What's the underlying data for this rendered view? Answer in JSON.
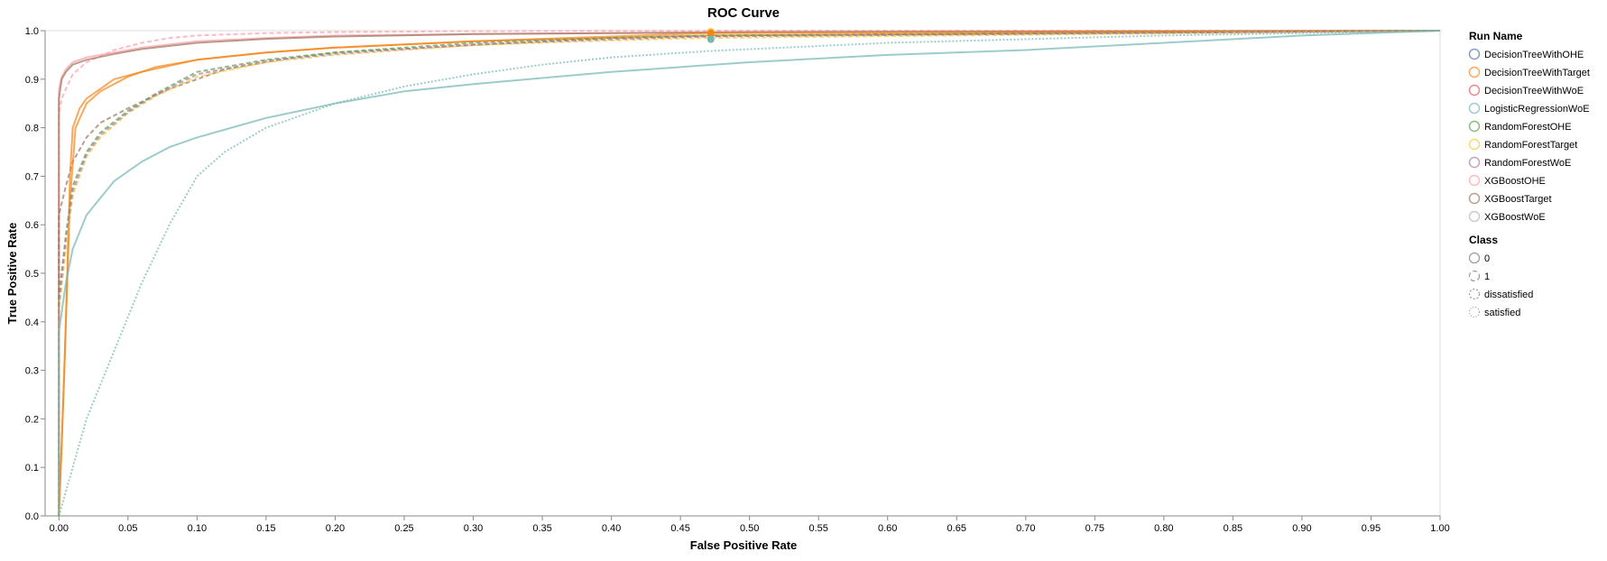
{
  "colors": {
    "DecisionTreeWithOHE": "#4c78a8",
    "DecisionTreeWithTarget": "#f58518",
    "DecisionTreeWithWoE": "#e45756",
    "LogisticRegressionWoE": "#72b7b2",
    "RandomForestOHE": "#54a24b",
    "RandomForestTarget": "#eeca3b",
    "RandomForestWoE": "#b279a2",
    "XGBoostOHE": "#ff9da6",
    "XGBoostTarget": "#9d755d",
    "XGBoostWoE": "#bab0ac",
    "axis": "#888888",
    "grid": "#dddddd"
  },
  "chart_data": {
    "type": "line",
    "title": "ROC Curve",
    "xlabel": "False Positive Rate",
    "ylabel": "True Positive Rate",
    "xlim": [
      -0.01,
      1.0
    ],
    "ylim": [
      0,
      1.0
    ],
    "grid": false,
    "legend_placement": "right",
    "xticks": [
      "0.00",
      "0.05",
      "0.10",
      "0.15",
      "0.20",
      "0.25",
      "0.30",
      "0.35",
      "0.40",
      "0.45",
      "0.50",
      "0.55",
      "0.60",
      "0.65",
      "0.70",
      "0.75",
      "0.80",
      "0.85",
      "0.90",
      "0.95",
      "1.00"
    ],
    "xtick_values": [
      0,
      0.05,
      0.1,
      0.15,
      0.2,
      0.25,
      0.3,
      0.35,
      0.4,
      0.45,
      0.5,
      0.55,
      0.6,
      0.65,
      0.7,
      0.75,
      0.8,
      0.85,
      0.9,
      0.95,
      1.0
    ],
    "yticks": [
      "0.0",
      "0.1",
      "0.2",
      "0.3",
      "0.4",
      "0.5",
      "0.6",
      "0.7",
      "0.8",
      "0.9",
      "1.0"
    ],
    "ytick_values": [
      0,
      0.1,
      0.2,
      0.3,
      0.4,
      0.5,
      0.6,
      0.7,
      0.8,
      0.9,
      1.0
    ],
    "legend_run": {
      "title": "Run Name",
      "items": [
        "DecisionTreeWithOHE",
        "DecisionTreeWithTarget",
        "DecisionTreeWithWoE",
        "LogisticRegressionWoE",
        "RandomForestOHE",
        "RandomForestTarget",
        "RandomForestWoE",
        "XGBoostOHE",
        "XGBoostTarget",
        "XGBoostWoE"
      ]
    },
    "legend_class": {
      "title": "Class",
      "items": [
        {
          "label": "0",
          "dash": "solid"
        },
        {
          "label": "1",
          "dash": "dashed"
        },
        {
          "label": "dissatisfied",
          "dash": "dotted"
        },
        {
          "label": "satisfied",
          "dash": "fine-dotted"
        }
      ]
    },
    "series": [
      {
        "run": "XGBoostOHE",
        "class": "0",
        "dash": "solid",
        "x": [
          0,
          0.0,
          0.002,
          0.005,
          0.01,
          0.02,
          0.04,
          0.06,
          0.1,
          0.15,
          0.2,
          0.3,
          0.4,
          0.5,
          0.7,
          1.0
        ],
        "y": [
          0,
          0.88,
          0.905,
          0.92,
          0.935,
          0.945,
          0.955,
          0.965,
          0.978,
          0.985,
          0.99,
          0.993,
          0.995,
          0.997,
          0.999,
          1.0
        ]
      },
      {
        "run": "XGBoostOHE",
        "class": "1",
        "dash": "dashed",
        "x": [
          0,
          0.0,
          0.002,
          0.005,
          0.01,
          0.02,
          0.04,
          0.06,
          0.08,
          0.1,
          0.15,
          0.2,
          0.3,
          0.5,
          1.0
        ],
        "y": [
          0,
          0.83,
          0.86,
          0.88,
          0.91,
          0.935,
          0.96,
          0.975,
          0.985,
          0.99,
          0.995,
          0.997,
          0.999,
          1.0,
          1.0
        ]
      },
      {
        "run": "XGBoostTarget",
        "class": "0",
        "dash": "solid",
        "x": [
          0,
          0.0,
          0.002,
          0.005,
          0.01,
          0.02,
          0.04,
          0.06,
          0.1,
          0.15,
          0.2,
          0.3,
          0.5,
          1.0
        ],
        "y": [
          0,
          0.86,
          0.9,
          0.915,
          0.93,
          0.94,
          0.952,
          0.962,
          0.975,
          0.983,
          0.988,
          0.993,
          0.997,
          1.0
        ]
      },
      {
        "run": "XGBoostTarget",
        "class": "1",
        "dash": "dashed",
        "x": [
          0,
          0.0,
          0.005,
          0.01,
          0.02,
          0.03,
          0.05,
          0.08,
          0.12,
          0.16,
          0.2,
          0.3,
          0.4,
          0.5,
          1.0
        ],
        "y": [
          0,
          0.62,
          0.68,
          0.73,
          0.78,
          0.81,
          0.84,
          0.88,
          0.92,
          0.94,
          0.955,
          0.97,
          0.985,
          0.99,
          1.0
        ]
      },
      {
        "run": "DecisionTreeWithTarget",
        "class": "0",
        "dash": "solid",
        "x": [
          0,
          0.002,
          0.004,
          0.006,
          0.008,
          0.01,
          0.015,
          0.02,
          0.03,
          0.04,
          0.06,
          0.1,
          0.15,
          0.2,
          0.3,
          0.47,
          1.0
        ],
        "y": [
          0,
          0.15,
          0.3,
          0.5,
          0.7,
          0.8,
          0.84,
          0.86,
          0.88,
          0.9,
          0.915,
          0.94,
          0.955,
          0.965,
          0.978,
          0.99,
          1.0
        ]
      },
      {
        "run": "DecisionTreeWithTarget",
        "class": "1",
        "dash": "solid",
        "x": [
          0,
          0.002,
          0.005,
          0.008,
          0.012,
          0.02,
          0.03,
          0.05,
          0.07,
          0.1,
          0.15,
          0.2,
          0.3,
          0.47,
          1.0
        ],
        "y": [
          0,
          0.15,
          0.4,
          0.65,
          0.8,
          0.85,
          0.875,
          0.905,
          0.925,
          0.94,
          0.955,
          0.965,
          0.978,
          0.995,
          1.0
        ]
      },
      {
        "run": "RandomForestOHE",
        "class": "1",
        "dash": "dashed",
        "x": [
          0,
          0.0,
          0.005,
          0.01,
          0.02,
          0.03,
          0.05,
          0.07,
          0.1,
          0.15,
          0.2,
          0.3,
          0.4,
          0.47,
          1.0
        ],
        "y": [
          0,
          0.45,
          0.58,
          0.68,
          0.75,
          0.79,
          0.835,
          0.87,
          0.915,
          0.94,
          0.955,
          0.975,
          0.985,
          0.99,
          1.0
        ]
      },
      {
        "run": "RandomForestTarget",
        "class": "1",
        "dash": "dashed",
        "x": [
          0,
          0.0,
          0.005,
          0.01,
          0.02,
          0.03,
          0.05,
          0.07,
          0.1,
          0.15,
          0.2,
          0.3,
          0.4,
          0.47,
          1.0
        ],
        "y": [
          0,
          0.42,
          0.55,
          0.66,
          0.74,
          0.78,
          0.83,
          0.865,
          0.905,
          0.935,
          0.95,
          0.97,
          0.98,
          0.985,
          1.0
        ]
      },
      {
        "run": "RandomForestWoE",
        "class": "1",
        "dash": "dashed",
        "x": [
          0,
          0.0,
          0.005,
          0.01,
          0.02,
          0.03,
          0.05,
          0.07,
          0.1,
          0.15,
          0.2,
          0.3,
          0.4,
          0.47,
          1.0
        ],
        "y": [
          0,
          0.44,
          0.57,
          0.67,
          0.745,
          0.785,
          0.832,
          0.868,
          0.91,
          0.938,
          0.952,
          0.972,
          0.982,
          0.988,
          1.0
        ]
      },
      {
        "run": "LogisticRegressionWoE",
        "class": "0",
        "dash": "solid",
        "x": [
          0,
          0.0,
          0.005,
          0.01,
          0.02,
          0.04,
          0.06,
          0.08,
          0.1,
          0.15,
          0.2,
          0.25,
          0.3,
          0.4,
          0.5,
          0.6,
          0.7,
          0.8,
          0.9,
          1.0
        ],
        "y": [
          0,
          0.38,
          0.48,
          0.55,
          0.62,
          0.69,
          0.73,
          0.76,
          0.78,
          0.82,
          0.85,
          0.875,
          0.89,
          0.915,
          0.935,
          0.95,
          0.96,
          0.975,
          0.99,
          1.0
        ]
      },
      {
        "run": "LogisticRegressionWoE",
        "class": "1",
        "dash": "dotted",
        "x": [
          0,
          0.005,
          0.01,
          0.02,
          0.04,
          0.06,
          0.08,
          0.1,
          0.12,
          0.15,
          0.2,
          0.25,
          0.3,
          0.35,
          0.4,
          0.47,
          0.6,
          0.8,
          1.0
        ],
        "y": [
          0,
          0.05,
          0.1,
          0.2,
          0.34,
          0.48,
          0.6,
          0.7,
          0.75,
          0.8,
          0.85,
          0.885,
          0.91,
          0.93,
          0.945,
          0.958,
          0.975,
          0.99,
          1.0
        ]
      }
    ],
    "markers": [
      {
        "run": "RandomForestTarget",
        "x": 0.472,
        "y": 0.998
      },
      {
        "run": "DecisionTreeWithTarget",
        "x": 0.472,
        "y": 0.995
      },
      {
        "run": "LogisticRegressionWoE",
        "x": 0.472,
        "y": 0.982
      }
    ]
  }
}
